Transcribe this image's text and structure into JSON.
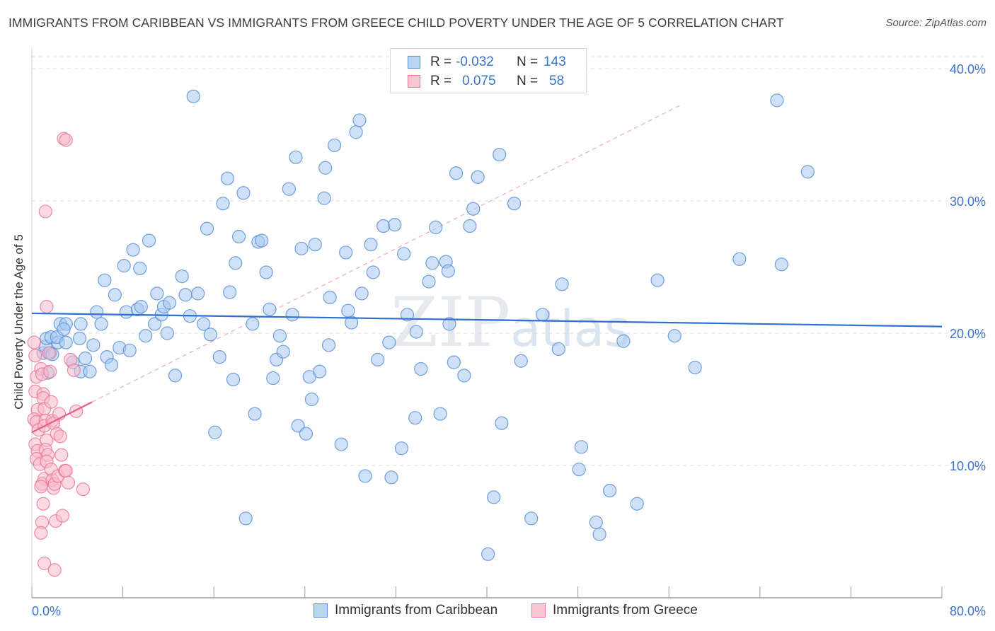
{
  "header": {
    "title": "IMMIGRANTS FROM CARIBBEAN VS IMMIGRANTS FROM GREECE CHILD POVERTY UNDER THE AGE OF 5 CORRELATION CHART",
    "source": "Source: ZipAtlas.com"
  },
  "watermark": {
    "zip": "ZIP",
    "atlas": "atlas"
  },
  "legend": {
    "r_label": "R =",
    "n_label": "N =",
    "series": [
      {
        "r": "-0.032",
        "n": "143"
      },
      {
        "r": "0.075",
        "n": "58"
      }
    ]
  },
  "colors": {
    "caribbean_fill": "#a8c8f0",
    "caribbean_stroke": "#5b8fd6",
    "caribbean_line": "#2e6fcf",
    "greece_fill": "#f7b9cb",
    "greece_stroke": "#e8789a",
    "greece_line": "#e06089",
    "axis_text": "#3b74c9",
    "grid": "#dcdcdc"
  },
  "chart_data": {
    "type": "scatter",
    "title": "IMMIGRANTS FROM CARIBBEAN VS IMMIGRANTS FROM GREECE CHILD POVERTY UNDER THE AGE OF 5 CORRELATION CHART",
    "xlabel": "",
    "ylabel": "Child Poverty Under the Age of 5",
    "xlim": [
      0,
      80
    ],
    "ylim": [
      0,
      40
    ],
    "x_tick_labels": [
      "0.0%",
      "80.0%"
    ],
    "y_ticks": [
      10,
      20,
      30,
      40
    ],
    "y_tick_labels": [
      "10.0%",
      "20.0%",
      "30.0%",
      "40.0%"
    ],
    "grid": true,
    "legend_position": "top-center",
    "series": [
      {
        "name": "Immigrants from Caribbean",
        "r": -0.032,
        "n": 143,
        "trend": {
          "x": [
            0,
            80
          ],
          "y": [
            21.5,
            20.5
          ]
        },
        "points": [
          [
            1.0,
            18.5
          ],
          [
            1.2,
            19.0
          ],
          [
            1.4,
            17.0
          ],
          [
            1.6,
            18.5
          ],
          [
            1.3,
            19.6
          ],
          [
            1.7,
            19.7
          ],
          [
            1.8,
            18.4
          ],
          [
            2.3,
            19.3
          ],
          [
            2.2,
            19.7
          ],
          [
            3.0,
            19.3
          ],
          [
            2.5,
            20.7
          ],
          [
            3.0,
            20.7
          ],
          [
            2.8,
            20.3
          ],
          [
            4.3,
            20.7
          ],
          [
            4.2,
            19.6
          ],
          [
            3.6,
            17.8
          ],
          [
            4.3,
            17.1
          ],
          [
            4.7,
            18.1
          ],
          [
            5.1,
            17.1
          ],
          [
            5.4,
            19.1
          ],
          [
            5.7,
            21.6
          ],
          [
            6.1,
            20.7
          ],
          [
            6.4,
            24.0
          ],
          [
            6.6,
            18.2
          ],
          [
            7.0,
            17.6
          ],
          [
            7.3,
            22.9
          ],
          [
            7.7,
            18.9
          ],
          [
            8.1,
            25.1
          ],
          [
            8.3,
            21.6
          ],
          [
            8.6,
            18.7
          ],
          [
            8.9,
            26.3
          ],
          [
            9.3,
            21.8
          ],
          [
            9.5,
            24.9
          ],
          [
            9.6,
            22.0
          ],
          [
            10.0,
            19.8
          ],
          [
            10.3,
            27.0
          ],
          [
            10.8,
            20.7
          ],
          [
            11.0,
            23.0
          ],
          [
            11.4,
            21.4
          ],
          [
            11.6,
            22.0
          ],
          [
            11.9,
            20.0
          ],
          [
            12.1,
            22.3
          ],
          [
            12.6,
            16.8
          ],
          [
            13.2,
            24.3
          ],
          [
            13.5,
            22.9
          ],
          [
            13.9,
            21.3
          ],
          [
            14.2,
            37.9
          ],
          [
            14.6,
            23.0
          ],
          [
            15.1,
            20.7
          ],
          [
            15.4,
            27.9
          ],
          [
            15.7,
            19.9
          ],
          [
            16.1,
            12.5
          ],
          [
            16.5,
            18.2
          ],
          [
            16.8,
            29.8
          ],
          [
            17.2,
            31.7
          ],
          [
            17.4,
            23.1
          ],
          [
            17.7,
            16.5
          ],
          [
            17.9,
            25.3
          ],
          [
            18.2,
            27.3
          ],
          [
            18.6,
            30.6
          ],
          [
            18.8,
            6.0
          ],
          [
            19.4,
            20.7
          ],
          [
            19.6,
            13.9
          ],
          [
            19.9,
            26.9
          ],
          [
            20.2,
            27.0
          ],
          [
            20.6,
            24.6
          ],
          [
            20.9,
            21.8
          ],
          [
            21.2,
            16.6
          ],
          [
            21.5,
            18.0
          ],
          [
            21.8,
            19.8
          ],
          [
            22.1,
            18.6
          ],
          [
            22.6,
            30.9
          ],
          [
            22.9,
            21.4
          ],
          [
            23.2,
            33.3
          ],
          [
            23.4,
            13.0
          ],
          [
            23.7,
            26.4
          ],
          [
            24.1,
            12.4
          ],
          [
            24.4,
            16.7
          ],
          [
            24.6,
            15.0
          ],
          [
            24.9,
            26.7
          ],
          [
            25.3,
            17.1
          ],
          [
            25.7,
            30.2
          ],
          [
            25.8,
            32.5
          ],
          [
            26.2,
            22.7
          ],
          [
            26.1,
            19.1
          ],
          [
            26.6,
            34.2
          ],
          [
            27.2,
            11.6
          ],
          [
            27.6,
            26.1
          ],
          [
            27.8,
            21.7
          ],
          [
            28.1,
            20.8
          ],
          [
            28.5,
            35.2
          ],
          [
            28.8,
            36.1
          ],
          [
            29.0,
            23.0
          ],
          [
            29.3,
            9.2
          ],
          [
            29.8,
            26.7
          ],
          [
            30.0,
            24.6
          ],
          [
            30.4,
            18.0
          ],
          [
            30.9,
            28.1
          ],
          [
            31.4,
            19.3
          ],
          [
            31.6,
            9.1
          ],
          [
            31.9,
            28.2
          ],
          [
            32.5,
            11.3
          ],
          [
            32.7,
            26.0
          ],
          [
            33.0,
            21.4
          ],
          [
            33.7,
            13.6
          ],
          [
            33.8,
            20.1
          ],
          [
            34.2,
            17.3
          ],
          [
            34.9,
            23.9
          ],
          [
            35.2,
            25.3
          ],
          [
            35.5,
            28.0
          ],
          [
            35.9,
            13.9
          ],
          [
            36.4,
            25.4
          ],
          [
            36.6,
            24.7
          ],
          [
            36.7,
            20.7
          ],
          [
            37.1,
            17.8
          ],
          [
            37.3,
            32.1
          ],
          [
            38.0,
            16.8
          ],
          [
            38.5,
            28.1
          ],
          [
            38.8,
            29.4
          ],
          [
            39.2,
            31.8
          ],
          [
            40.1,
            3.3
          ],
          [
            40.6,
            7.6
          ],
          [
            41.1,
            33.5
          ],
          [
            41.3,
            13.2
          ],
          [
            42.4,
            29.8
          ],
          [
            43.0,
            17.9
          ],
          [
            43.9,
            6.0
          ],
          [
            44.9,
            21.4
          ],
          [
            46.3,
            18.8
          ],
          [
            46.6,
            23.7
          ],
          [
            48.1,
            9.7
          ],
          [
            48.3,
            11.4
          ],
          [
            49.6,
            5.7
          ],
          [
            49.9,
            4.8
          ],
          [
            50.8,
            8.1
          ],
          [
            52.0,
            19.4
          ],
          [
            53.2,
            7.1
          ],
          [
            55.0,
            24.0
          ],
          [
            56.5,
            19.8
          ],
          [
            58.3,
            17.4
          ],
          [
            62.2,
            25.6
          ],
          [
            65.5,
            37.6
          ],
          [
            65.9,
            25.2
          ],
          [
            68.2,
            32.2
          ]
        ]
      },
      {
        "name": "Immigrants from Greece",
        "r": 0.075,
        "n": 58,
        "trend": {
          "x": [
            0,
            5.3
          ],
          "y": [
            12.5,
            14.8
          ]
        },
        "points": [
          [
            0.2,
            19.3
          ],
          [
            0.3,
            18.3
          ],
          [
            0.4,
            16.7
          ],
          [
            0.3,
            15.6
          ],
          [
            0.5,
            14.2
          ],
          [
            0.2,
            13.5
          ],
          [
            0.4,
            13.3
          ],
          [
            0.6,
            12.7
          ],
          [
            0.3,
            11.6
          ],
          [
            0.5,
            11.1
          ],
          [
            0.4,
            10.5
          ],
          [
            0.7,
            10.1
          ],
          [
            0.8,
            17.3
          ],
          [
            0.9,
            16.9
          ],
          [
            1.0,
            15.4
          ],
          [
            1.0,
            15.1
          ],
          [
            1.1,
            14.3
          ],
          [
            1.2,
            13.4
          ],
          [
            1.1,
            13.0
          ],
          [
            1.3,
            11.9
          ],
          [
            1.2,
            11.2
          ],
          [
            1.4,
            10.8
          ],
          [
            1.3,
            10.3
          ],
          [
            1.1,
            9.0
          ],
          [
            0.9,
            8.6
          ],
          [
            0.8,
            8.4
          ],
          [
            1.0,
            7.1
          ],
          [
            0.9,
            5.7
          ],
          [
            0.8,
            4.9
          ],
          [
            1.1,
            2.6
          ],
          [
            1.3,
            22.0
          ],
          [
            1.5,
            18.5
          ],
          [
            1.6,
            17.1
          ],
          [
            1.7,
            14.8
          ],
          [
            1.8,
            13.4
          ],
          [
            1.9,
            13.2
          ],
          [
            1.7,
            9.7
          ],
          [
            1.8,
            8.9
          ],
          [
            1.9,
            8.3
          ],
          [
            2.0,
            8.6
          ],
          [
            2.1,
            5.8
          ],
          [
            2.0,
            2.1
          ],
          [
            2.2,
            12.4
          ],
          [
            2.3,
            9.2
          ],
          [
            2.4,
            13.9
          ],
          [
            2.5,
            12.2
          ],
          [
            2.6,
            10.8
          ],
          [
            2.7,
            6.2
          ],
          [
            2.9,
            9.6
          ],
          [
            3.0,
            9.6
          ],
          [
            3.2,
            8.7
          ],
          [
            3.4,
            18.0
          ],
          [
            3.7,
            17.2
          ],
          [
            3.9,
            14.1
          ],
          [
            4.5,
            8.2
          ],
          [
            2.8,
            34.7
          ],
          [
            3.0,
            34.6
          ],
          [
            1.2,
            29.2
          ]
        ]
      }
    ]
  }
}
